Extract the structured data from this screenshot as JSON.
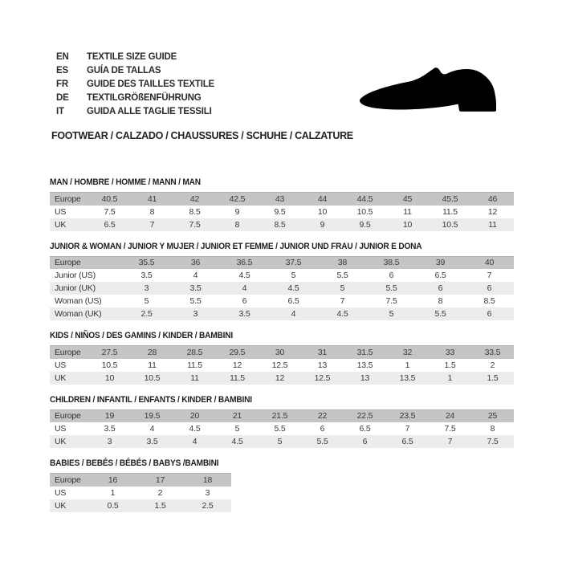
{
  "header": {
    "languages": [
      {
        "code": "EN",
        "text": "TEXTILE SIZE GUIDE"
      },
      {
        "code": "ES",
        "text": "GUÍA DE TALLAS"
      },
      {
        "code": "FR",
        "text": "GUIDE DES TAILLES TEXTILE"
      },
      {
        "code": "DE",
        "text": "TEXTILGRÖßENFÜHRUNG"
      },
      {
        "code": "IT",
        "text": "GUIDA ALLE TAGLIE TESSILI"
      }
    ],
    "category_line": "FOOTWEAR / CALZADO / CHAUSSURES / SCHUHE / CALZATURE",
    "shoe_icon": "dress-shoe-silhouette"
  },
  "colors": {
    "header_row_bg": "#c5c5c5",
    "alt_row_bg": "#ececec",
    "text": "#2b2b2b",
    "icon": "#000000"
  },
  "sections": [
    {
      "title": "MAN / HOMBRE / HOMME / MANN / MAN",
      "rows": [
        {
          "label": "Europe",
          "values": [
            "40.5",
            "41",
            "42",
            "42.5",
            "43",
            "44",
            "44.5",
            "45",
            "45.5",
            "46"
          ]
        },
        {
          "label": "US",
          "values": [
            "7.5",
            "8",
            "8.5",
            "9",
            "9.5",
            "10",
            "10.5",
            "11",
            "11.5",
            "12"
          ]
        },
        {
          "label": "UK",
          "values": [
            "6.5",
            "7",
            "7.5",
            "8",
            "8.5",
            "9",
            "9.5",
            "10",
            "10.5",
            "11"
          ]
        }
      ]
    },
    {
      "title": "JUNIOR & WOMAN / JUNIOR Y MUJER / JUNIOR ET FEMME / JUNIOR UND FRAU / JUNIOR E DONA",
      "rows": [
        {
          "label": "Europe",
          "values": [
            "35.5",
            "36",
            "36.5",
            "37.5",
            "38",
            "38.5",
            "39",
            "40"
          ]
        },
        {
          "label": "Junior (US)",
          "values": [
            "3.5",
            "4",
            "4.5",
            "5",
            "5.5",
            "6",
            "6.5",
            "7"
          ]
        },
        {
          "label": "Junior (UK)",
          "values": [
            "3",
            "3.5",
            "4",
            "4.5",
            "5",
            "5.5",
            "6",
            "6"
          ]
        },
        {
          "label": "Woman (US)",
          "values": [
            "5",
            "5.5",
            "6",
            "6.5",
            "7",
            "7.5",
            "8",
            "8.5"
          ]
        },
        {
          "label": "Woman (UK)",
          "values": [
            "2.5",
            "3",
            "3.5",
            "4",
            "4.5",
            "5",
            "5.5",
            "6"
          ]
        }
      ]
    },
    {
      "title": "KIDS / NIÑOS / DES GAMINS / KINDER / BAMBINI",
      "rows": [
        {
          "label": "Europe",
          "values": [
            "27.5",
            "28",
            "28.5",
            "29.5",
            "30",
            "31",
            "31.5",
            "32",
            "33",
            "33.5"
          ]
        },
        {
          "label": "US",
          "values": [
            "10.5",
            "11",
            "11.5",
            "12",
            "12.5",
            "13",
            "13.5",
            "1",
            "1.5",
            "2"
          ]
        },
        {
          "label": "UK",
          "values": [
            "10",
            "10.5",
            "11",
            "11.5",
            "12",
            "12.5",
            "13",
            "13.5",
            "1",
            "1.5"
          ]
        }
      ]
    },
    {
      "title": "CHILDREN / INFANTIL / ENFANTS / KINDER / BAMBINI",
      "rows": [
        {
          "label": "Europe",
          "values": [
            "19",
            "19.5",
            "20",
            "21",
            "21.5",
            "22",
            "22.5",
            "23.5",
            "24",
            "25"
          ]
        },
        {
          "label": "US",
          "values": [
            "3.5",
            "4",
            "4.5",
            "5",
            "5.5",
            "6",
            "6.5",
            "7",
            "7.5",
            "8"
          ]
        },
        {
          "label": "UK",
          "values": [
            "3",
            "3.5",
            "4",
            "4.5",
            "5",
            "5.5",
            "6",
            "6.5",
            "7",
            "7.5"
          ]
        }
      ]
    },
    {
      "title": "BABIES / BEBÉS / BÉBÉS / BABYS /BAMBINI",
      "rows": [
        {
          "label": "Europe",
          "values": [
            "16",
            "17",
            "18"
          ]
        },
        {
          "label": "US",
          "values": [
            "1",
            "2",
            "3"
          ]
        },
        {
          "label": "UK",
          "values": [
            "0.5",
            "1.5",
            "2.5"
          ]
        }
      ]
    }
  ]
}
